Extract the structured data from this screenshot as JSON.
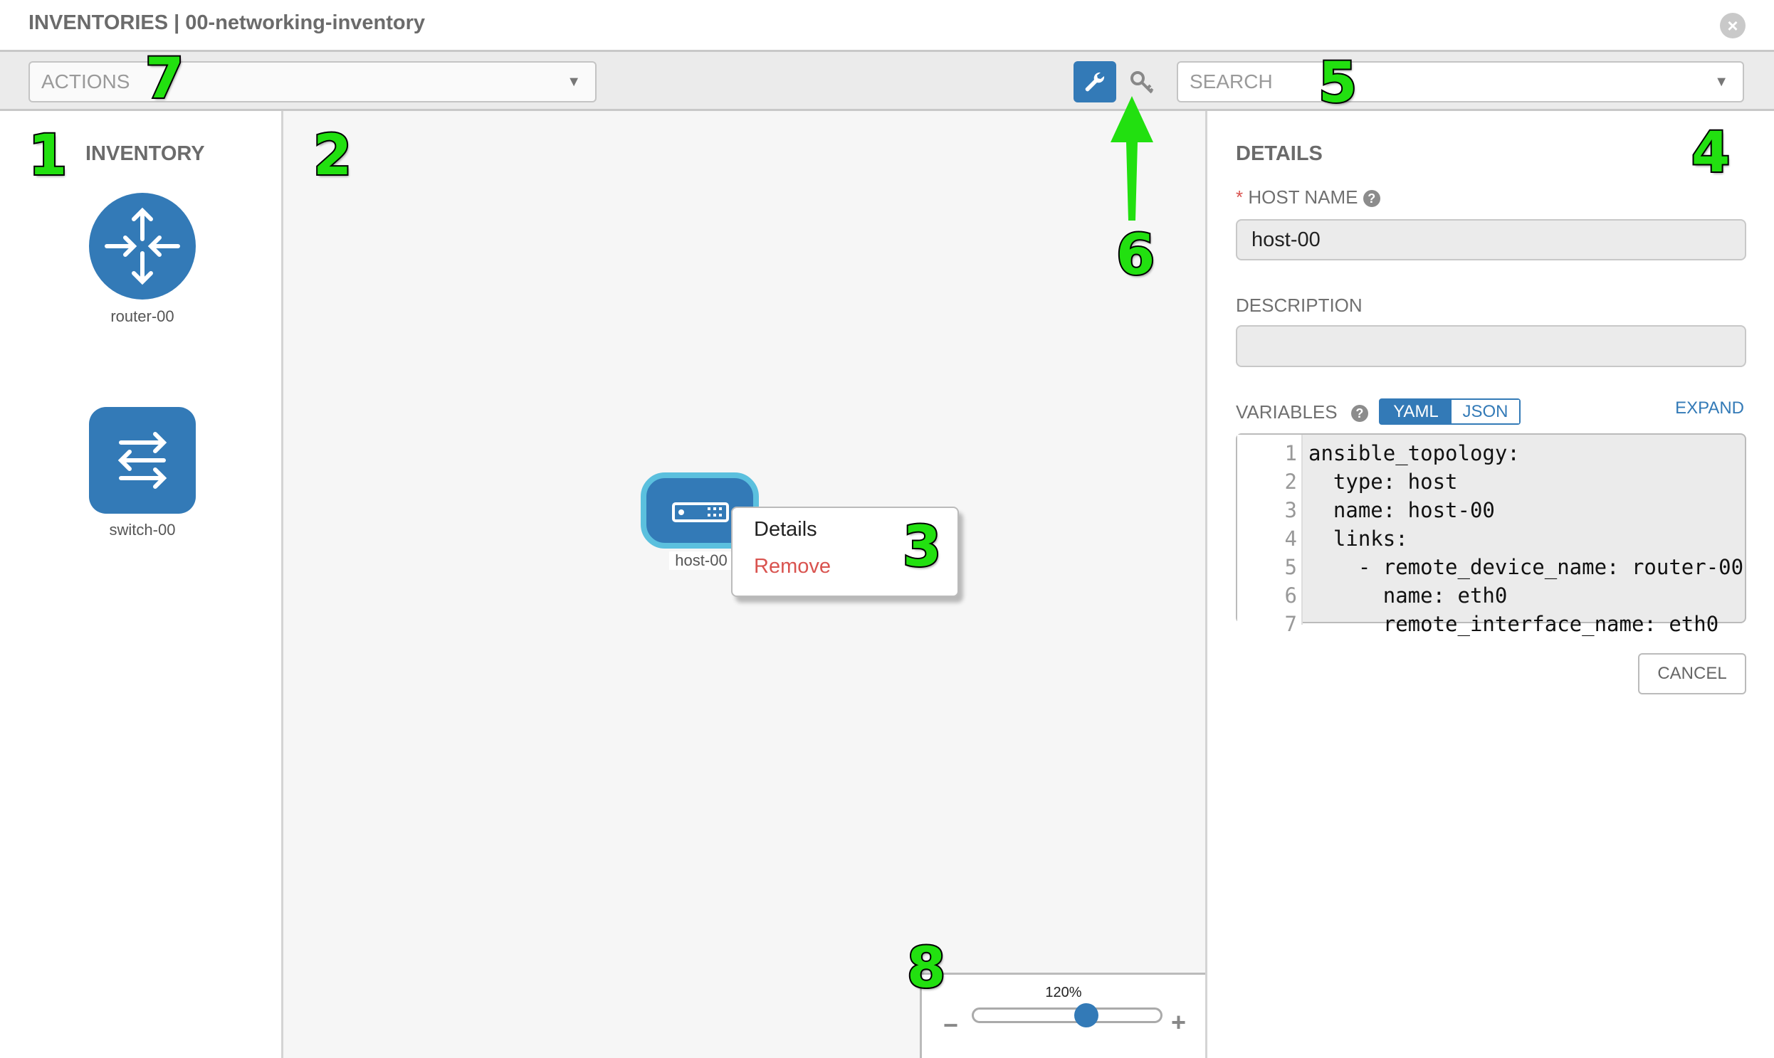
{
  "header": {
    "title": "INVENTORIES | 00-networking-inventory",
    "close_icon": "close-circle-icon"
  },
  "toolbar": {
    "actions_label": "ACTIONS",
    "search_placeholder": "SEARCH",
    "wrench_icon": "wrench-icon",
    "key_icon": "key-icon"
  },
  "sidebar": {
    "heading": "INVENTORY",
    "items": [
      {
        "label": "router-00",
        "icon": "router-icon"
      },
      {
        "label": "switch-00",
        "icon": "switch-icon"
      }
    ]
  },
  "canvas": {
    "node": {
      "label": "host-00",
      "icon": "host-server-icon"
    },
    "context_menu": {
      "items": [
        "Details",
        "Remove"
      ]
    },
    "zoom": {
      "label": "120%",
      "value_percent": 120,
      "slider_fraction": 0.6
    }
  },
  "details": {
    "heading": "DETAILS",
    "host_name_label": "HOST NAME",
    "required_mark": "*",
    "host_name_value": "host-00",
    "description_label": "DESCRIPTION",
    "description_value": "",
    "variables_label": "VARIABLES",
    "toggle": [
      "YAML",
      "JSON"
    ],
    "toggle_selected": "YAML",
    "expand_label": "EXPAND",
    "code_lines": [
      {
        "n": "1",
        "text": "ansible_topology:"
      },
      {
        "n": "2",
        "text": "  type: host"
      },
      {
        "n": "3",
        "text": "  name: host-00"
      },
      {
        "n": "4",
        "text": "  links:"
      },
      {
        "n": "5",
        "text": "    - remote_device_name: router-00"
      },
      {
        "n": "6",
        "text": "      name: eth0"
      },
      {
        "n": "7",
        "text": "      remote_interface_name: eth0"
      }
    ],
    "cancel_label": "CANCEL"
  },
  "annotations": [
    "1",
    "2",
    "3",
    "4",
    "5",
    "6",
    "7",
    "8"
  ],
  "colors": {
    "accent": "#337ab7",
    "node_border": "#5bc0de",
    "danger": "#d9534f",
    "annotation": "#22e010"
  }
}
